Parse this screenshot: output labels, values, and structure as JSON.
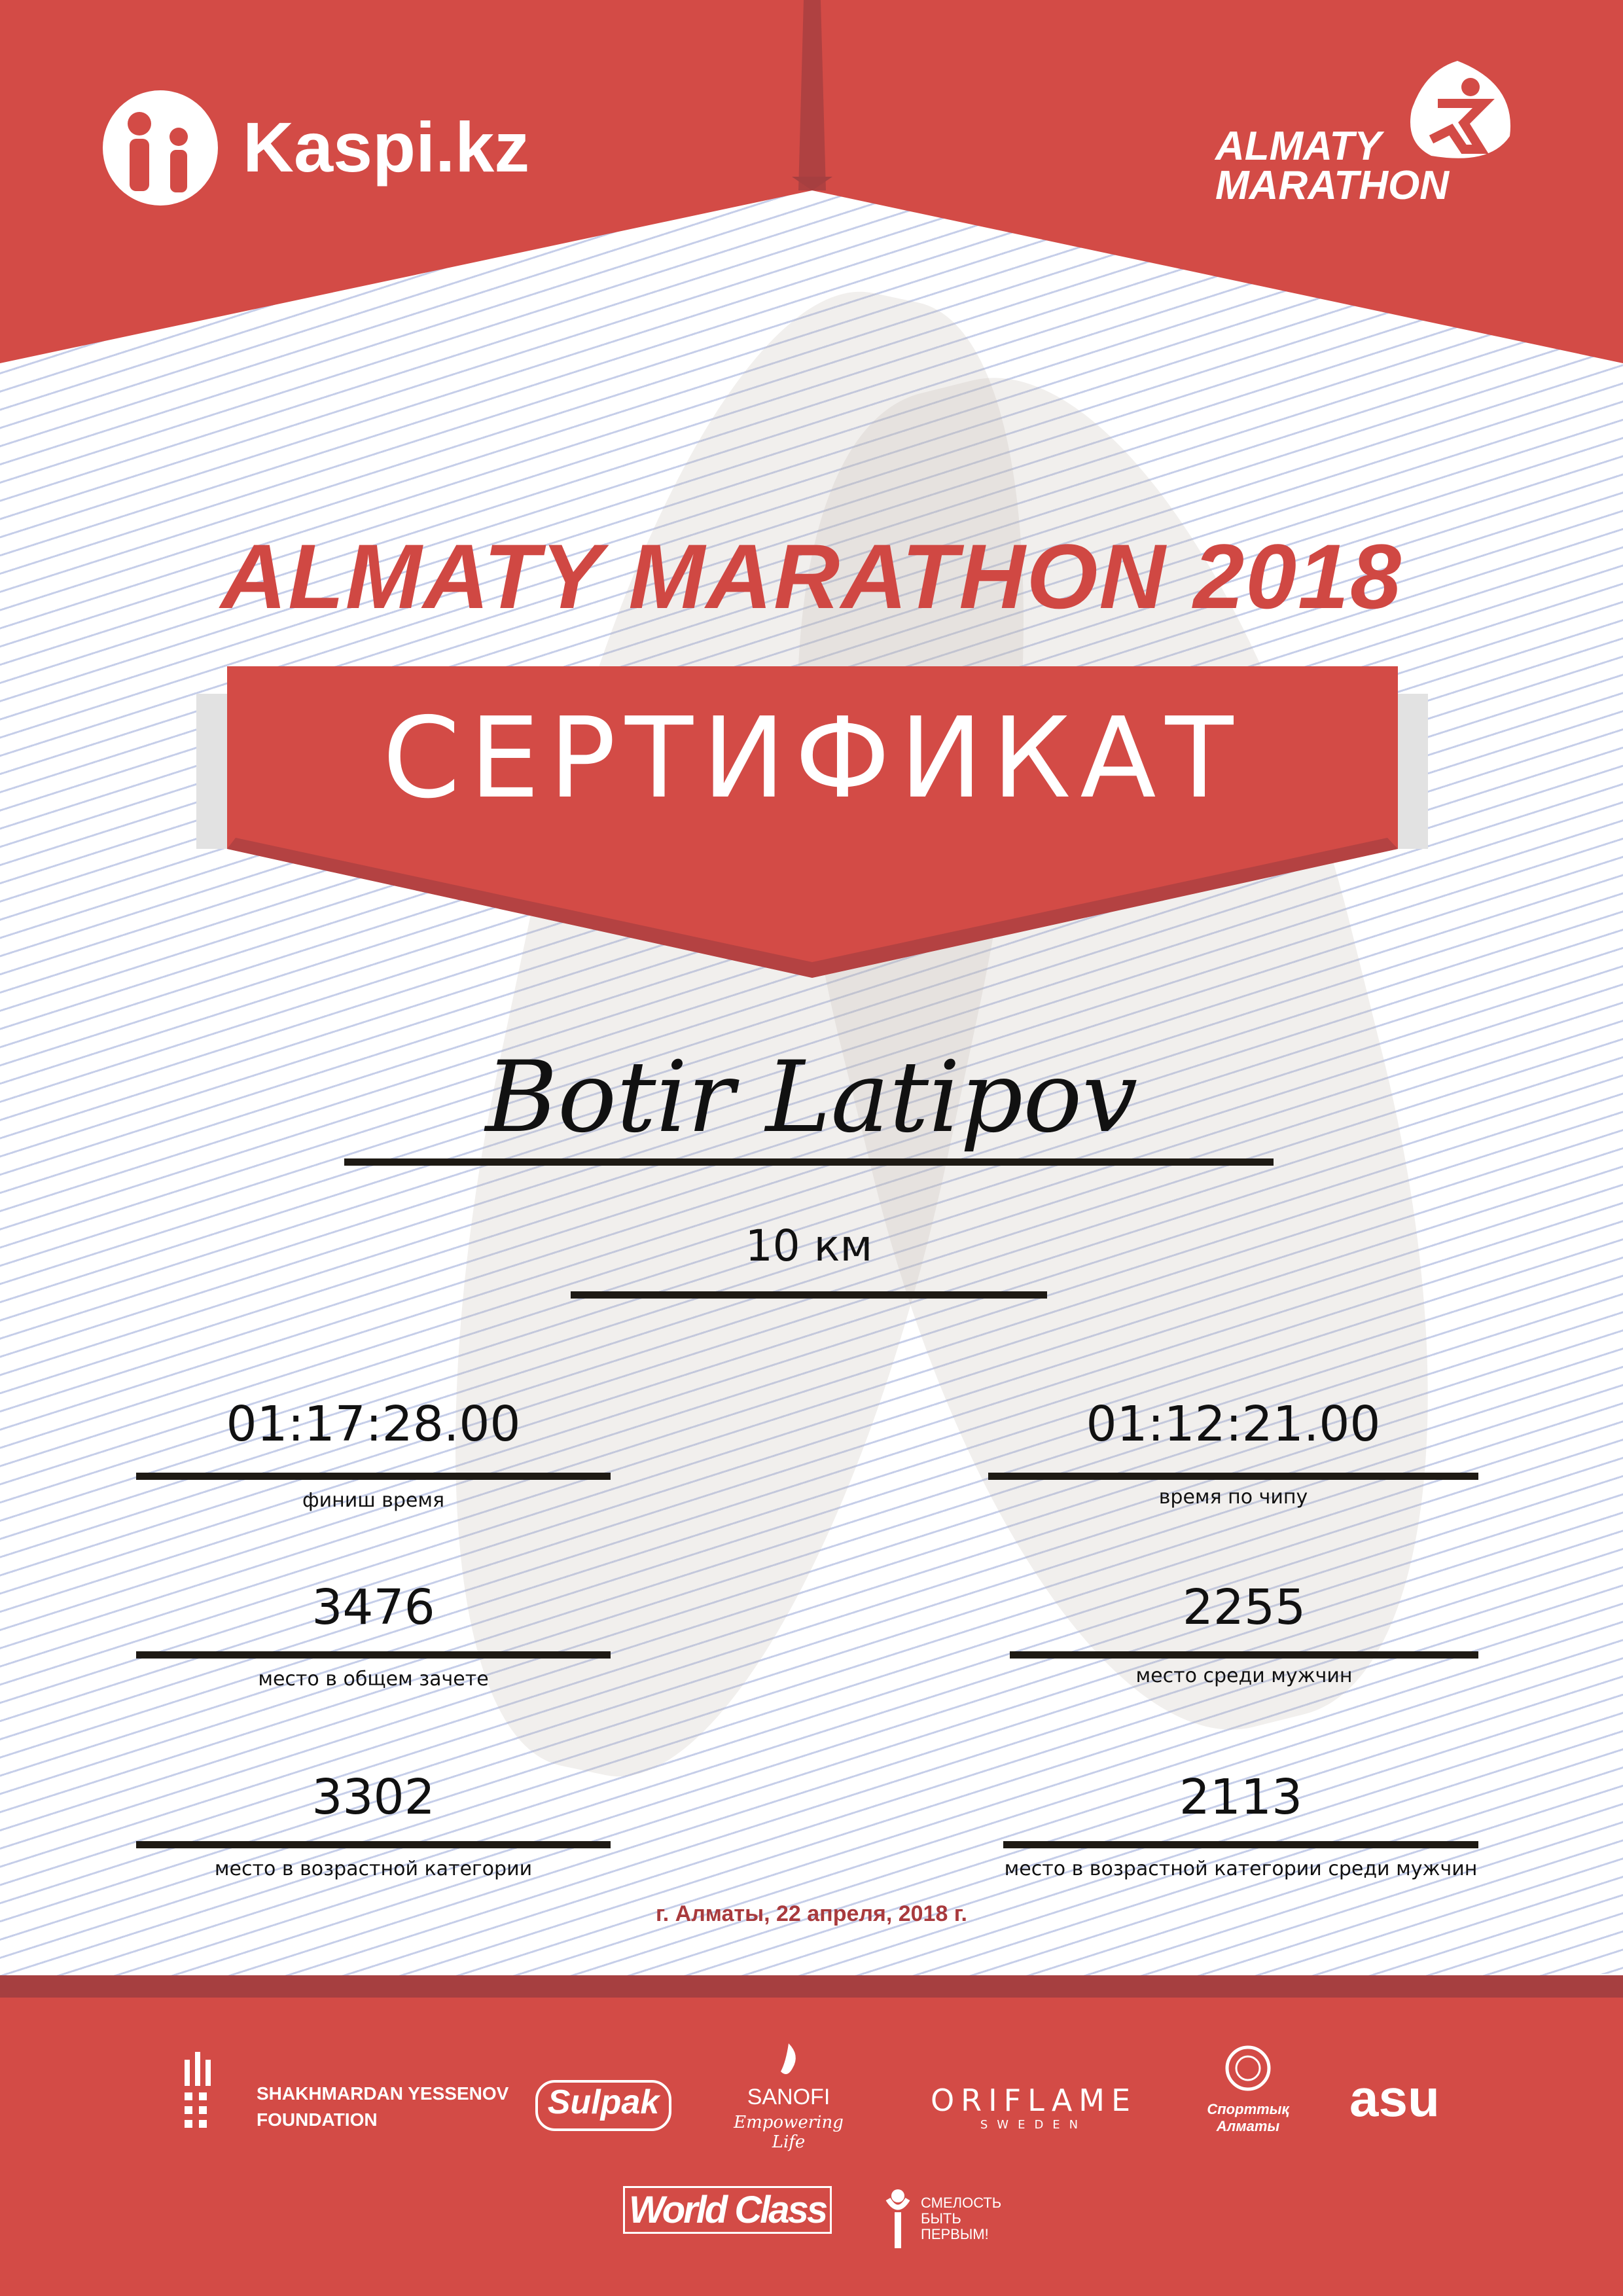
{
  "header": {
    "sponsor_logo": "Kaspi.kz",
    "event_logo_line1": "ALMATY",
    "event_logo_line2": "MARATHON"
  },
  "title": "ALMATY MARATHON 2018",
  "certificate_label": "СЕРТИФИКАТ",
  "participant_name": "Botir Latipov",
  "distance": "10 км",
  "results": {
    "finish_time": {
      "value": "01:17:28.00",
      "label": "финиш время"
    },
    "chip_time": {
      "value": "01:12:21.00",
      "label": "время по чипу"
    },
    "overall_place": {
      "value": "3476",
      "label": "место в общем зачете"
    },
    "male_place": {
      "value": "2255",
      "label": "место среди мужчин"
    },
    "age_place": {
      "value": "3302",
      "label": "место в возрастной категории"
    },
    "age_male_place": {
      "value": "2113",
      "label": "место в возрастной категории среди мужчин"
    }
  },
  "date_line": "г. Алматы, 22 апреля, 2018 г.",
  "sponsors": {
    "yessenov_line1": "SHAKHMARDAN YESSENOV",
    "yessenov_line2": "FOUNDATION",
    "sulpak": "Sulpak",
    "sanofi": "SANOFI",
    "sanofi_tagline": "Empowering Life",
    "oriflame": "ORIFLAME",
    "oriflame_sub": "SWEDEN",
    "sport_almaty": "Спорттық Алматы",
    "asu": "asu",
    "worldclass": "World Class",
    "fund_line1": "СМЕЛОСТЬ",
    "fund_line2": "БЫТЬ",
    "fund_line3": "ПЕРВЫМ!"
  },
  "colors": {
    "primary_red": "#d34b46",
    "dark_red": "#a63f40",
    "date_red": "#a83a3d"
  }
}
